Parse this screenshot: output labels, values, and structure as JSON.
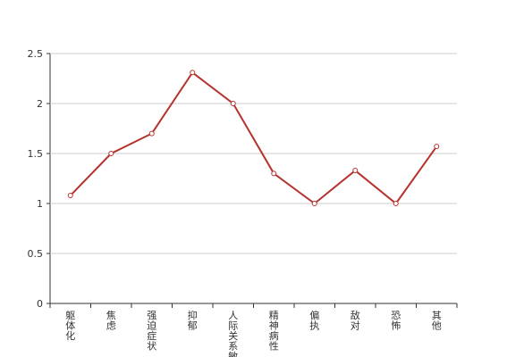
{
  "chart_data": {
    "type": "line",
    "categories": [
      "躯体化",
      "焦虑",
      "强迫症状",
      "抑郁",
      "人际关系敏感",
      "精神病性",
      "偏执",
      "敌对",
      "恐怖",
      "其他"
    ],
    "series": [
      {
        "color": "#b5322e",
        "values": [
          1.08,
          1.5,
          1.7,
          2.31,
          2.0,
          1.3,
          1.0,
          1.33,
          1.0,
          1.57
        ]
      }
    ],
    "ylim": [
      0,
      2.5
    ],
    "yticks": [
      0,
      0.5,
      1,
      1.5,
      2,
      2.5
    ],
    "grid": true
  }
}
